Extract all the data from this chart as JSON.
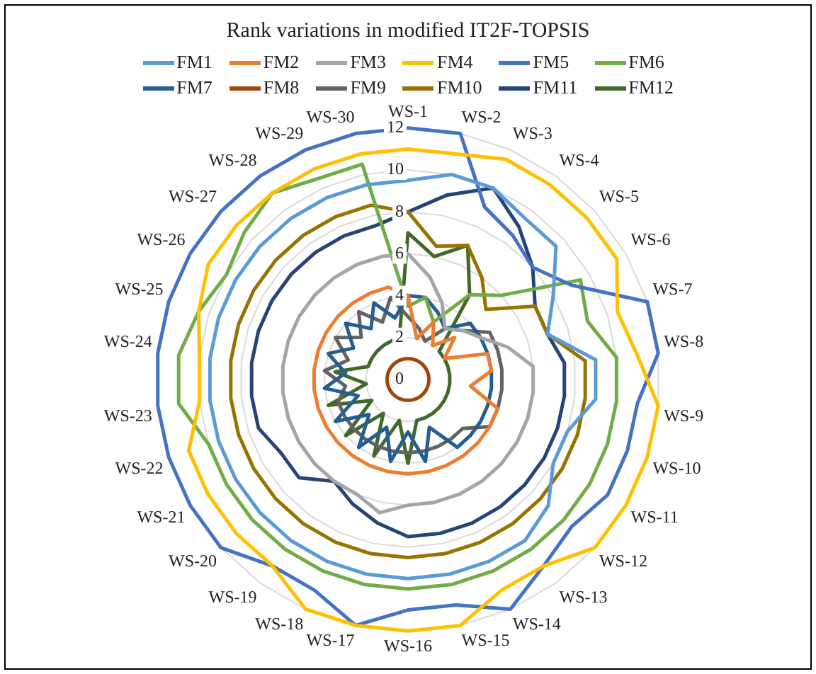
{
  "chart_data": {
    "type": "radar",
    "title": "Rank variations in modified IT2F-TOPSIS",
    "categories": [
      "WS-1",
      "WS-2",
      "WS-3",
      "WS-4",
      "WS-5",
      "WS-6",
      "WS-7",
      "WS-8",
      "WS-9",
      "WS-10",
      "WS-11",
      "WS-12",
      "WS-13",
      "WS-14",
      "WS-15",
      "WS-16",
      "WS-17",
      "WS-18",
      "WS-19",
      "WS-20",
      "WS-21",
      "WS-22",
      "WS-23",
      "WS-24",
      "WS-25",
      "WS-26",
      "WS-27",
      "WS-28",
      "WS-29",
      "WS-30"
    ],
    "ylim": [
      0,
      12
    ],
    "yticks": [
      0,
      2,
      4,
      6,
      8,
      10,
      12
    ],
    "grid": true,
    "legend": "top",
    "marker": "none",
    "line_style": "solid",
    "series": [
      {
        "name": "FM1",
        "color": "#5b9bd5",
        "values": [
          9.5,
          10,
          10,
          9.5,
          9.5,
          8,
          7,
          9,
          9,
          8,
          8,
          9,
          9.5,
          9.5,
          9.5,
          9.5,
          9.5,
          9.5,
          9.5,
          9.5,
          9.5,
          9.5,
          9.5,
          9.5,
          9.5,
          9.5,
          9.5,
          9.5,
          9.5,
          9.5
        ]
      },
      {
        "name": "FM2",
        "color": "#ed7d31",
        "values": [
          4,
          2,
          3,
          2,
          3,
          2,
          4,
          4,
          3,
          4.5,
          4.5,
          4.5,
          4.5,
          4.5,
          4.5,
          4.5,
          4.5,
          4.5,
          4.5,
          4.5,
          4.5,
          4.5,
          4.5,
          4.5,
          4.5,
          4.5,
          4.5,
          4.5,
          4.5,
          4.5
        ]
      },
      {
        "name": "FM3",
        "color": "#a5a5a5",
        "values": [
          6,
          5,
          4,
          3,
          3.5,
          4,
          5,
          6,
          6,
          6,
          6,
          6,
          6,
          6,
          6,
          6,
          6.5,
          6,
          6,
          6,
          6,
          6,
          6,
          6,
          6,
          6,
          6,
          6,
          6,
          6
        ]
      },
      {
        "name": "FM4",
        "color": "#ffc000",
        "values": [
          11,
          11,
          11.5,
          11.5,
          11.5,
          11.5,
          10.5,
          11,
          12,
          12,
          12,
          12,
          11,
          11,
          12,
          12,
          12,
          12,
          11,
          11,
          11,
          11,
          10,
          10,
          10.5,
          11,
          11,
          11,
          11,
          11
        ]
      },
      {
        "name": "FM5",
        "color": "#4472c4",
        "values": [
          12,
          12,
          9,
          8.5,
          8,
          9,
          12,
          12,
          11,
          11,
          11,
          10.5,
          11,
          12,
          11,
          11,
          12,
          11,
          11,
          12,
          12,
          12,
          12,
          12,
          12,
          12,
          12,
          12,
          12,
          12
        ]
      },
      {
        "name": "FM6",
        "color": "#70ad47",
        "values": [
          3.5,
          4,
          3,
          5,
          6,
          9.5,
          9,
          10,
          10,
          10,
          10,
          10,
          10,
          10,
          10,
          10,
          10,
          10,
          10,
          10,
          10,
          10,
          11,
          11,
          10.5,
          10,
          10.5,
          11,
          10.5,
          10.5
        ]
      },
      {
        "name": "FM7",
        "color": "#255e91",
        "values": [
          4,
          4,
          3.5,
          3,
          4,
          4,
          4,
          4,
          4,
          4,
          4,
          4,
          4,
          2.5,
          4,
          2.5,
          4,
          2.5,
          4,
          2.5,
          4,
          2.5,
          4,
          3,
          4,
          3,
          4,
          3,
          4,
          3
        ]
      },
      {
        "name": "FM8",
        "color": "#9e480e",
        "values": [
          1,
          1,
          1,
          1,
          1,
          1,
          1,
          1,
          1,
          1,
          1,
          1,
          1,
          1,
          1,
          1,
          1,
          1,
          1,
          1,
          1,
          1,
          1,
          1,
          1,
          1,
          1,
          1,
          1,
          1
        ]
      },
      {
        "name": "FM9",
        "color": "#636363",
        "values": [
          3,
          2.5,
          2,
          3,
          3.5,
          4.5,
          4.5,
          4.5,
          4.5,
          4.5,
          4.5,
          3.5,
          3.5,
          3.5,
          3.5,
          3.5,
          3.5,
          3.5,
          3.5,
          3.5,
          3.5,
          3.5,
          3,
          4,
          3,
          4,
          3,
          4,
          3,
          4
        ]
      },
      {
        "name": "FM10",
        "color": "#997300",
        "values": [
          8,
          6.5,
          7,
          6,
          5,
          7,
          7,
          8.5,
          8.5,
          8.5,
          8.5,
          8.5,
          8.5,
          8.5,
          8.5,
          8.5,
          8.5,
          8.5,
          8.5,
          8.5,
          8.5,
          8.5,
          8.5,
          8.5,
          8.5,
          8.5,
          8.5,
          8.5,
          8.5,
          8.5
        ]
      },
      {
        "name": "FM11",
        "color": "#264478",
        "values": [
          8,
          9,
          10,
          9,
          8,
          7,
          7,
          7.5,
          7.5,
          7.5,
          7.5,
          7.5,
          7.5,
          7.5,
          7.5,
          7.5,
          7,
          6.5,
          6,
          7,
          7,
          7.5,
          7.5,
          7.5,
          7.5,
          7.5,
          7.5,
          7.5,
          7.5,
          7.5
        ]
      },
      {
        "name": "FM12",
        "color": "#43682b",
        "values": [
          7,
          6,
          7,
          5,
          2,
          2,
          2,
          2,
          2,
          2,
          2,
          2,
          2,
          2,
          2,
          4,
          2,
          4,
          2,
          4,
          2,
          4,
          2,
          3.5,
          2,
          2,
          2,
          2,
          2,
          2
        ]
      }
    ]
  }
}
